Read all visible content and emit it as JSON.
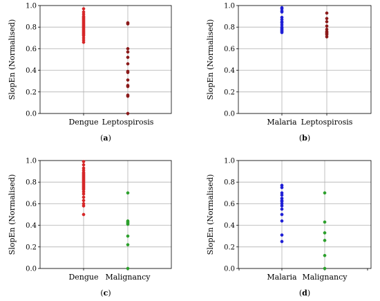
{
  "chart_data": [
    {
      "type": "scatter",
      "caption": "a",
      "ylabel": "SlopEn (Normalised)",
      "ylim": [
        0,
        1
      ],
      "yticks": [
        "0.0",
        "0.2",
        "0.4",
        "0.6",
        "0.8",
        "1.0"
      ],
      "grid": true,
      "categories": [
        "Dengue",
        "Leptospirosis"
      ],
      "series": [
        {
          "color": "#d62728",
          "values": [
            0.97,
            0.94,
            0.92,
            0.9,
            0.89,
            0.88,
            0.87,
            0.86,
            0.85,
            0.84,
            0.83,
            0.82,
            0.81,
            0.8,
            0.79,
            0.78,
            0.77,
            0.76,
            0.75,
            0.74,
            0.73,
            0.72,
            0.7,
            0.68,
            0.66
          ]
        },
        {
          "color": "#8b1a1a",
          "values": [
            0.84,
            0.83,
            0.6,
            0.57,
            0.52,
            0.46,
            0.39,
            0.38,
            0.31,
            0.26,
            0.25,
            0.17,
            0.16,
            0.0
          ]
        }
      ]
    },
    {
      "type": "scatter",
      "caption": "b",
      "ylabel": "SlopEn (Normalised)",
      "ylim": [
        0,
        1
      ],
      "yticks": [
        "0.0",
        "0.2",
        "0.4",
        "0.6",
        "0.8",
        "1.0"
      ],
      "grid": true,
      "categories": [
        "Malaria",
        "Leptospirosis"
      ],
      "series": [
        {
          "color": "#1f1fd6",
          "values": [
            0.98,
            0.97,
            0.95,
            0.94,
            0.89,
            0.87,
            0.85,
            0.84,
            0.82,
            0.8,
            0.79,
            0.78,
            0.77,
            0.76,
            0.75
          ]
        },
        {
          "color": "#8b1a1a",
          "values": [
            0.93,
            0.88,
            0.85,
            0.81,
            0.78,
            0.76,
            0.75,
            0.74,
            0.73,
            0.71
          ]
        }
      ]
    },
    {
      "type": "scatter",
      "caption": "c",
      "ylabel": "SlopEn (Normalised)",
      "ylim": [
        0,
        1
      ],
      "yticks": [
        "0.0",
        "0.2",
        "0.4",
        "0.6",
        "0.8",
        "1.0"
      ],
      "grid": true,
      "categories": [
        "Dengue",
        "Malignancy"
      ],
      "series": [
        {
          "color": "#d62728",
          "values": [
            0.99,
            0.96,
            0.93,
            0.91,
            0.89,
            0.88,
            0.87,
            0.86,
            0.85,
            0.84,
            0.83,
            0.82,
            0.81,
            0.8,
            0.79,
            0.78,
            0.77,
            0.76,
            0.75,
            0.74,
            0.73,
            0.71,
            0.69,
            0.66,
            0.63,
            0.6,
            0.58,
            0.5
          ]
        },
        {
          "color": "#2ca02c",
          "values": [
            0.7,
            0.44,
            0.43,
            0.42,
            0.41,
            0.3,
            0.22,
            0.0
          ]
        }
      ]
    },
    {
      "type": "scatter",
      "caption": "d",
      "ylabel": "SlopEn (Normalised)",
      "ylim": [
        0,
        1
      ],
      "yticks": [
        "0.0",
        "0.2",
        "0.4",
        "0.6",
        "0.8",
        "1.0"
      ],
      "grid": true,
      "categories": [
        "Malaria",
        "Malignancy"
      ],
      "series": [
        {
          "color": "#1f1fd6",
          "values": [
            0.77,
            0.75,
            0.7,
            0.68,
            0.65,
            0.63,
            0.62,
            0.6,
            0.58,
            0.55,
            0.5,
            0.44,
            0.31,
            0.25
          ]
        },
        {
          "color": "#2ca02c",
          "values": [
            0.7,
            0.43,
            0.33,
            0.26,
            0.12,
            0.0
          ]
        }
      ]
    }
  ]
}
